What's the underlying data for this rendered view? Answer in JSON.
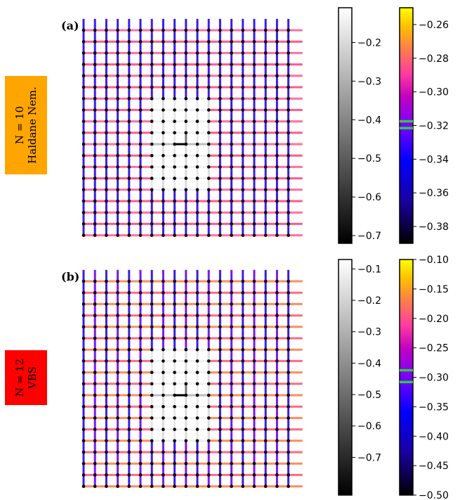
{
  "colors": {
    "label_orange": "#ffa500",
    "label_red": "#ff0000",
    "marker_line": "#2ecc40"
  },
  "panels": [
    {
      "tag": "(b)",
      "side_label": {
        "line1": "N = 12",
        "line2": "VBS",
        "color": "#ff0000"
      },
      "lattice": {
        "size": 19,
        "pattern": "dimerized",
        "hole_cols": [
          6,
          11
        ],
        "hole_rows": [
          6,
          14
        ]
      }
    }
  ],
  "chart_data": [
    {
      "type": "heatmap",
      "panel": "(a)",
      "title": "",
      "xlabel": "",
      "ylabel": "",
      "grid": "square lattice of sites (dots) with bonds colored by bond energy",
      "colorbar_gray": {
        "range": [
          -0.72,
          -0.11
        ],
        "ticks": [
          -0.2,
          -0.3,
          -0.4,
          -0.5,
          -0.6,
          -0.7
        ],
        "tick_labels": [
          "−0.2",
          "−0.3",
          "−0.4",
          "−0.5",
          "−0.6",
          "−0.7"
        ]
      },
      "colorbar_gnuplot": {
        "range": [
          -0.39,
          -0.25
        ],
        "ticks": [
          -0.26,
          -0.28,
          -0.3,
          -0.32,
          -0.34,
          -0.36,
          -0.38
        ],
        "tick_labels": [
          "−0.26",
          "−0.28",
          "−0.30",
          "−0.32",
          "−0.34",
          "−0.36",
          "−0.38"
        ],
        "markers": [
          -0.3175,
          -0.3215
        ]
      }
    },
    {
      "type": "heatmap",
      "panel": "(b)",
      "title": "",
      "xlabel": "",
      "ylabel": "",
      "grid": "square lattice of sites (dots) with bonds colored by bond energy",
      "colorbar_gray": {
        "range": [
          -0.82,
          -0.07
        ],
        "ticks": [
          -0.1,
          -0.2,
          -0.3,
          -0.4,
          -0.5,
          -0.6,
          -0.7
        ],
        "tick_labels": [
          "−0.1",
          "−0.2",
          "−0.3",
          "−0.4",
          "−0.5",
          "−0.6",
          "−0.7"
        ]
      },
      "colorbar_gnuplot": {
        "range": [
          -0.5,
          -0.1
        ],
        "ticks": [
          -0.1,
          -0.15,
          -0.2,
          -0.25,
          -0.3,
          -0.35,
          -0.4,
          -0.45,
          -0.5
        ],
        "tick_labels": [
          "−0.10",
          "−0.15",
          "−0.20",
          "−0.25",
          "−0.30",
          "−0.35",
          "−0.40",
          "−0.45",
          "−0.50"
        ],
        "markers": [
          -0.288,
          -0.308
        ]
      }
    }
  ],
  "panels_a": {
    "tag": "(a)",
    "side_label": {
      "line1": "N = 10",
      "line2": "Haldane Nem.",
      "color": "#ffa500"
    },
    "lattice": {
      "size": 19,
      "pattern": "uniform",
      "hole_cols": [
        6,
        11
      ],
      "hole_rows": [
        6,
        14
      ]
    }
  }
}
